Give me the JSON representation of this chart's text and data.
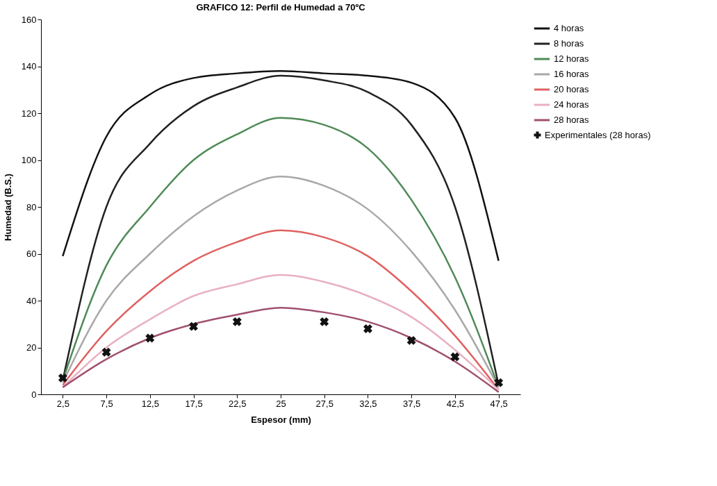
{
  "chart_data": {
    "type": "line",
    "title": "GRAFICO 12: Perfil de Humedad a 70ºC",
    "xlabel": "Espesor (mm)",
    "ylabel": "Humedad (B.S.)",
    "categories": [
      "2,5",
      "7,5",
      "12,5",
      "17,5",
      "22,5",
      "25",
      "27,5",
      "32,5",
      "37,5",
      "42,5",
      "47,5"
    ],
    "ylim": [
      0,
      160
    ],
    "yticks": [
      0,
      20,
      40,
      60,
      80,
      100,
      120,
      140,
      160
    ],
    "grid": false,
    "legend": "right",
    "line_style": "solid",
    "marker": "none",
    "series": [
      {
        "name": "4 horas",
        "color": "#111111",
        "values": [
          59,
          110,
          128,
          135,
          137,
          138,
          137,
          136,
          133,
          118,
          57
        ]
      },
      {
        "name": "8 horas",
        "color": "#222222",
        "values": [
          6,
          80,
          107,
          123,
          131,
          136,
          134,
          129,
          115,
          80,
          4
        ]
      },
      {
        "name": "12 horas",
        "color": "#4f8a57",
        "values": [
          6,
          55,
          80,
          100,
          111,
          118,
          115,
          105,
          83,
          50,
          3
        ]
      },
      {
        "name": "16 horas",
        "color": "#a8a8a8",
        "values": [
          5,
          40,
          60,
          76,
          87,
          93,
          89,
          79,
          61,
          36,
          3
        ]
      },
      {
        "name": "20 horas",
        "color": "#e06060",
        "values": [
          4,
          27,
          44,
          57,
          65,
          70,
          67,
          59,
          44,
          25,
          2
        ]
      },
      {
        "name": "24 horas",
        "color": "#e8b0c0",
        "values": [
          3,
          20,
          32,
          42,
          47,
          51,
          48,
          42,
          33,
          19,
          2
        ]
      },
      {
        "name": "28 horas",
        "color": "#a05070",
        "values": [
          3,
          15,
          24,
          30,
          34,
          37,
          35,
          31,
          24,
          14,
          1
        ]
      },
      {
        "name": "Experimentales (28 horas)",
        "type": "scatter",
        "marker": "cross",
        "color": "#111111",
        "values": [
          7,
          18,
          24,
          29,
          31,
          null,
          31,
          28,
          23,
          16,
          5
        ]
      }
    ]
  }
}
